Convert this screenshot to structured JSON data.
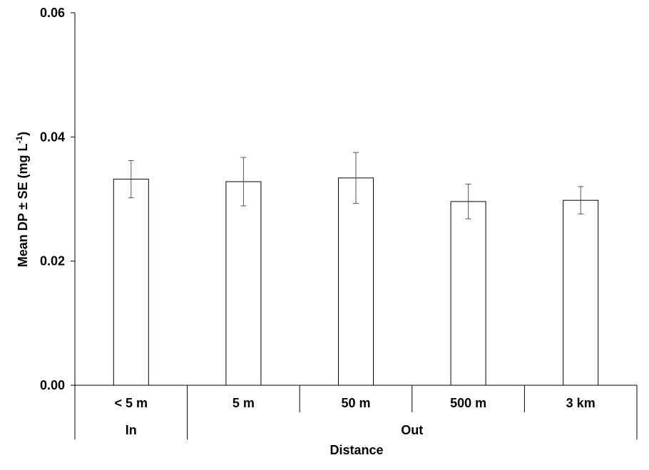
{
  "chart_data": {
    "type": "bar",
    "title": "",
    "xlabel": "Distance",
    "ylabel": "Mean DP ± SE (mg L",
    "ylabel_superscript": "-1",
    "ylabel_suffix": ")",
    "ylim": [
      0,
      0.06
    ],
    "yticks": [
      0.0,
      0.02,
      0.04,
      0.06
    ],
    "ytick_labels": [
      "0.00",
      "0.02",
      "0.04",
      "0.06"
    ],
    "categories": [
      "< 5 m",
      "5 m",
      "50 m",
      "500 m",
      "3 km"
    ],
    "values": [
      0.0332,
      0.0328,
      0.0334,
      0.0296,
      0.0298
    ],
    "errors": [
      0.003,
      0.0039,
      0.0041,
      0.0028,
      0.0022
    ],
    "groups": [
      {
        "label": "In",
        "categories": [
          "< 5 m"
        ]
      },
      {
        "label": "Out",
        "categories": [
          "5 m",
          "50 m",
          "500 m",
          "3 km"
        ]
      }
    ],
    "bar_fill": "#ffffff",
    "bar_stroke": "#000000",
    "error_color": "#555555",
    "grid": false,
    "legend": "none"
  }
}
